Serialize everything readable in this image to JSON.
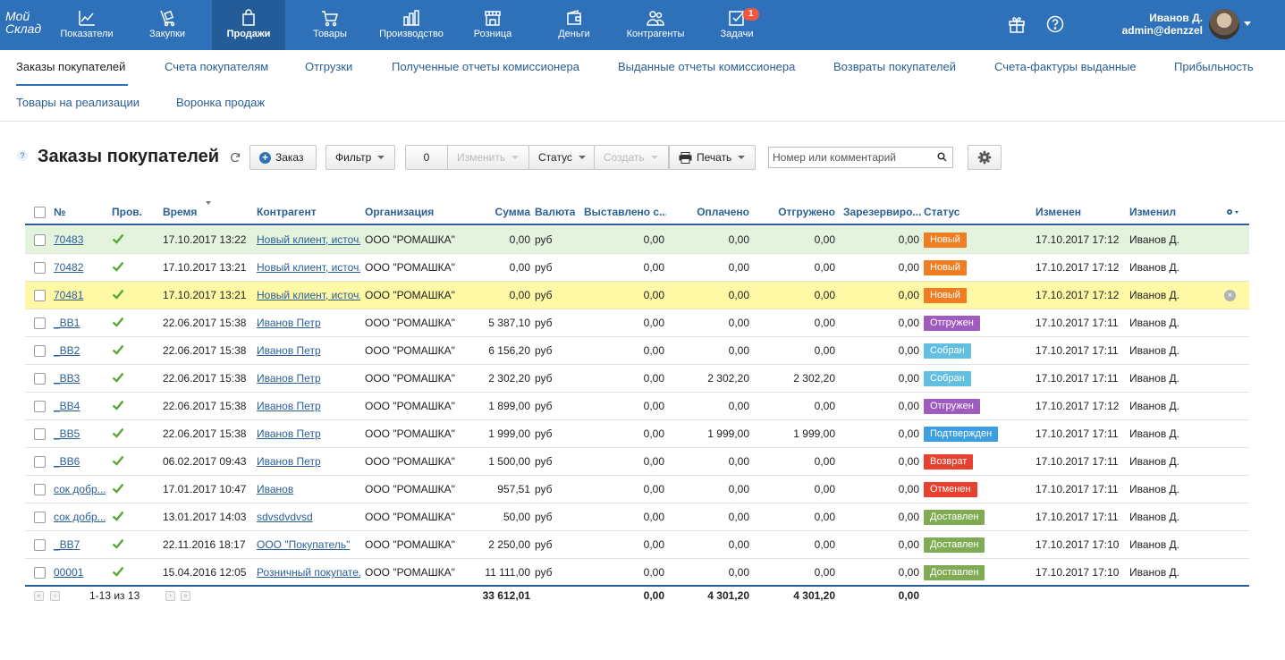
{
  "app": {
    "logo": "Мой Склад"
  },
  "nav": [
    {
      "label": "Показатели",
      "icon": "chart-icon"
    },
    {
      "label": "Закупки",
      "icon": "cart-dolly-icon"
    },
    {
      "label": "Продажи",
      "icon": "shopping-bag-icon",
      "active": true
    },
    {
      "label": "Товары",
      "icon": "shopping-cart-icon"
    },
    {
      "label": "Производство",
      "icon": "factory-icon"
    },
    {
      "label": "Розница",
      "icon": "storefront-icon"
    },
    {
      "label": "Деньги",
      "icon": "wallet-icon"
    },
    {
      "label": "Контрагенты",
      "icon": "people-icon"
    },
    {
      "label": "Задачи",
      "icon": "checkbox-icon",
      "badge": "1"
    }
  ],
  "user": {
    "name": "Иванов Д.",
    "login": "admin@denzzel"
  },
  "subnav": [
    {
      "label": "Заказы покупателей",
      "active": true
    },
    {
      "label": "Счета покупателям"
    },
    {
      "label": "Отгрузки"
    },
    {
      "label": "Полученные отчеты комиссионера"
    },
    {
      "label": "Выданные отчеты комиссионера"
    },
    {
      "label": "Возвраты покупателей"
    },
    {
      "label": "Счета-фактуры выданные"
    },
    {
      "label": "Прибыльность"
    },
    {
      "label": "Товары на реализации"
    },
    {
      "label": "Воронка продаж"
    }
  ],
  "toolbar": {
    "help": "?",
    "title": "Заказы покупателей",
    "add_label": "Заказ",
    "filter_label": "Фильтр",
    "selected_count": "0",
    "edit_label": "Изменить",
    "status_label": "Статус",
    "create_label": "Создать",
    "print_label": "Печать",
    "search_placeholder": "Номер или комментарий"
  },
  "columns": [
    "№",
    "Пров.",
    "Время",
    "Контрагент",
    "Организация",
    "Сумма",
    "Валюта",
    "Выставлено с...",
    "Оплачено",
    "Отгружено",
    "Зарезервиро...",
    "Статус",
    "Изменен",
    "Изменил"
  ],
  "status_colors": {
    "Новый": "#f07d22",
    "Отгружен": "#a05bbf",
    "Собран": "#63bfe0",
    "Подтвержден": "#3d9fe0",
    "Возврат": "#e8402e",
    "Отменен": "#e8402e",
    "Доставлен": "#80ab55"
  },
  "rows": [
    {
      "num": "70483",
      "time": "17.10.2017 13:22",
      "counterparty": "Новый клиент, источ...",
      "org": "ООО \"РОМАШКА\"",
      "sum": "0,00",
      "currency": "руб",
      "invoiced": "0,00",
      "paid": "0,00",
      "shipped": "0,00",
      "reserved": "0,00",
      "status": "Новый",
      "modified": "17.10.2017 17:12",
      "modified_by": "Иванов Д.",
      "highlight": "green"
    },
    {
      "num": "70482",
      "time": "17.10.2017 13:21",
      "counterparty": "Новый клиент, источ...",
      "org": "ООО \"РОМАШКА\"",
      "sum": "0,00",
      "currency": "руб",
      "invoiced": "0,00",
      "paid": "0,00",
      "shipped": "0,00",
      "reserved": "0,00",
      "status": "Новый",
      "modified": "17.10.2017 17:12",
      "modified_by": "Иванов Д."
    },
    {
      "num": "70481",
      "time": "17.10.2017 13:21",
      "counterparty": "Новый клиент, источ...",
      "org": "ООО \"РОМАШКА\"",
      "sum": "0,00",
      "currency": "руб",
      "invoiced": "0,00",
      "paid": "0,00",
      "shipped": "0,00",
      "reserved": "0,00",
      "status": "Новый",
      "modified": "17.10.2017 17:12",
      "modified_by": "Иванов Д.",
      "highlight": "yellow",
      "removable": true
    },
    {
      "num": "_BB1",
      "time": "22.06.2017 15:38",
      "counterparty": "Иванов Петр",
      "org": "ООО \"РОМАШКА\"",
      "sum": "5 387,10",
      "currency": "руб",
      "invoiced": "0,00",
      "paid": "0,00",
      "shipped": "0,00",
      "reserved": "0,00",
      "status": "Отгружен",
      "modified": "17.10.2017 17:11",
      "modified_by": "Иванов Д."
    },
    {
      "num": "_BB2",
      "time": "22.06.2017 15:38",
      "counterparty": "Иванов Петр",
      "org": "ООО \"РОМАШКА\"",
      "sum": "6 156,20",
      "currency": "руб",
      "invoiced": "0,00",
      "paid": "0,00",
      "shipped": "0,00",
      "reserved": "0,00",
      "status": "Собран",
      "modified": "17.10.2017 17:11",
      "modified_by": "Иванов Д."
    },
    {
      "num": "_BB3",
      "time": "22.06.2017 15:38",
      "counterparty": "Иванов Петр",
      "org": "ООО \"РОМАШКА\"",
      "sum": "2 302,20",
      "currency": "руб",
      "invoiced": "0,00",
      "paid": "2 302,20",
      "shipped": "2 302,20",
      "reserved": "0,00",
      "status": "Собран",
      "modified": "17.10.2017 17:11",
      "modified_by": "Иванов Д."
    },
    {
      "num": "_BB4",
      "time": "22.06.2017 15:38",
      "counterparty": "Иванов Петр",
      "org": "ООО \"РОМАШКА\"",
      "sum": "1 899,00",
      "currency": "руб",
      "invoiced": "0,00",
      "paid": "0,00",
      "shipped": "0,00",
      "reserved": "0,00",
      "status": "Отгружен",
      "modified": "17.10.2017 17:12",
      "modified_by": "Иванов Д."
    },
    {
      "num": "_BB5",
      "time": "22.06.2017 15:38",
      "counterparty": "Иванов Петр",
      "org": "ООО \"РОМАШКА\"",
      "sum": "1 999,00",
      "currency": "руб",
      "invoiced": "0,00",
      "paid": "1 999,00",
      "shipped": "1 999,00",
      "reserved": "0,00",
      "status": "Подтвержден",
      "modified": "17.10.2017 17:11",
      "modified_by": "Иванов Д."
    },
    {
      "num": "_BB6",
      "time": "06.02.2017 09:43",
      "counterparty": "Иванов Петр",
      "org": "ООО \"РОМАШКА\"",
      "sum": "1 500,00",
      "currency": "руб",
      "invoiced": "0,00",
      "paid": "0,00",
      "shipped": "0,00",
      "reserved": "0,00",
      "status": "Возврат",
      "modified": "17.10.2017 17:11",
      "modified_by": "Иванов Д."
    },
    {
      "num": "сок добр...",
      "time": "17.01.2017 10:47",
      "counterparty": "Иванов",
      "org": "ООО \"РОМАШКА\"",
      "sum": "957,51",
      "currency": "руб",
      "invoiced": "0,00",
      "paid": "0,00",
      "shipped": "0,00",
      "reserved": "0,00",
      "status": "Отменен",
      "modified": "17.10.2017 17:11",
      "modified_by": "Иванов Д."
    },
    {
      "num": "сок добр...",
      "time": "13.01.2017 14:03",
      "counterparty": "sdvsdvdvsd",
      "org": "ООО \"РОМАШКА\"",
      "sum": "50,00",
      "currency": "руб",
      "invoiced": "0,00",
      "paid": "0,00",
      "shipped": "0,00",
      "reserved": "0,00",
      "status": "Доставлен",
      "modified": "17.10.2017 17:11",
      "modified_by": "Иванов Д."
    },
    {
      "num": "_BB7",
      "time": "22.11.2016 18:17",
      "counterparty": "ООО \"Покупатель\"",
      "org": "ООО \"РОМАШКА\"",
      "sum": "2 250,00",
      "currency": "руб",
      "invoiced": "0,00",
      "paid": "0,00",
      "shipped": "0,00",
      "reserved": "0,00",
      "status": "Доставлен",
      "modified": "17.10.2017 17:10",
      "modified_by": "Иванов Д."
    },
    {
      "num": "00001",
      "time": "15.04.2016 12:05",
      "counterparty": "Розничный покупате...",
      "org": "ООО \"РОМАШКА\"",
      "sum": "11 111,00",
      "currency": "руб",
      "invoiced": "0,00",
      "paid": "0,00",
      "shipped": "0,00",
      "reserved": "0,00",
      "status": "Доставлен",
      "modified": "17.10.2017 17:10",
      "modified_by": "Иванов Д."
    }
  ],
  "footer": {
    "pagination": "1-13 из 13",
    "sum": "33 612,01",
    "invoiced": "0,00",
    "paid": "4 301,20",
    "shipped": "4 301,20",
    "reserved": "0,00"
  }
}
